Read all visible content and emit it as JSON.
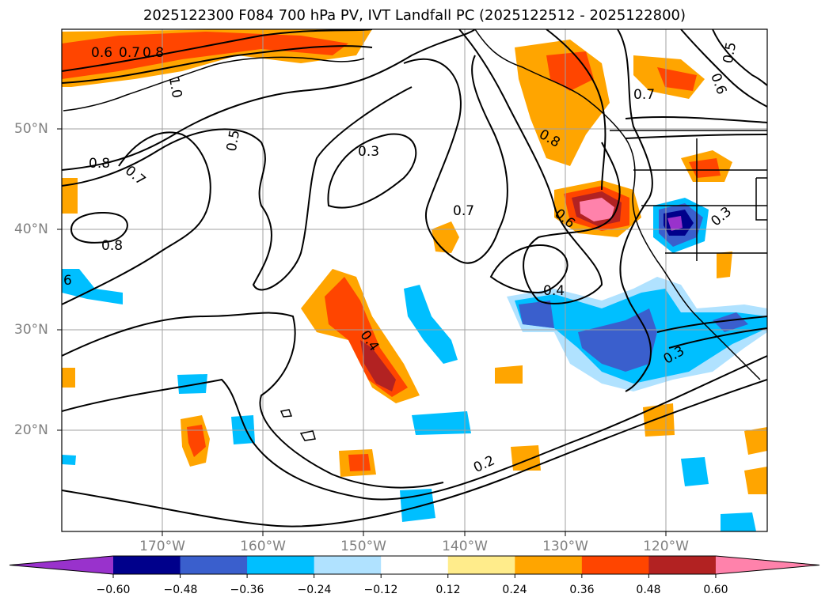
{
  "title": "2025122300 F084 700 hPa PV, IVT Landfall PC (2025122512 - 2025122800)",
  "map": {
    "region": "North Pacific and western North America",
    "lat_labels": [
      "50°N",
      "40°N",
      "30°N",
      "20°N"
    ],
    "lon_labels": [
      "170°W",
      "160°W",
      "150°W",
      "140°W",
      "130°W",
      "120°W"
    ],
    "contour_labels": [
      "0.6",
      "0.7",
      "0.8",
      "1.0",
      "0.5",
      "0.3",
      "0.8",
      "0.7",
      "0.8",
      "0.7",
      "0.4",
      "0.4",
      "0.6",
      "0.8",
      "0.7",
      "0.6",
      "0.5",
      "0.3",
      "0.3",
      "0.2",
      "6"
    ]
  },
  "colorbar": {
    "ticks": [
      "−0.60",
      "−0.48",
      "−0.36",
      "−0.24",
      "−0.12",
      "0.12",
      "0.24",
      "0.36",
      "0.48",
      "0.60"
    ],
    "colors": [
      "#9932cc",
      "#00008b",
      "#3a5fcd",
      "#00bfff",
      "#b0e2ff",
      "#ffffff",
      "#ffec8b",
      "#ffa500",
      "#ff4500",
      "#b22222",
      "#ff82ab"
    ]
  }
}
